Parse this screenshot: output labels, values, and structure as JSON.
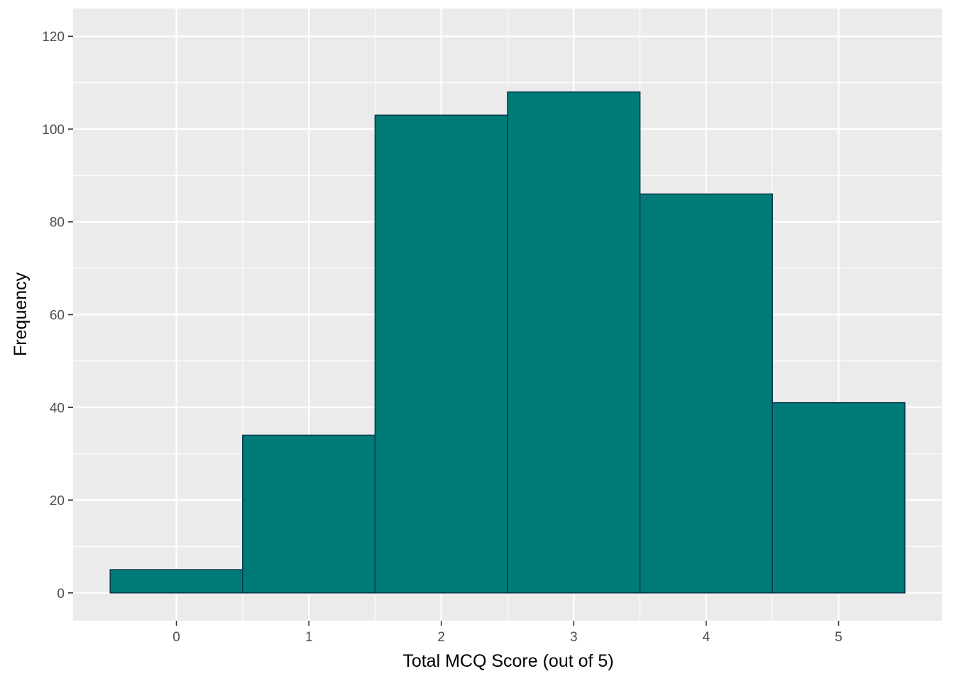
{
  "chart_data": {
    "type": "bar",
    "subtype": "histogram",
    "title": "",
    "xlabel": "Total MCQ Score (out of 5)",
    "ylabel": "Frequency",
    "categories": [
      0,
      1,
      2,
      3,
      4,
      5
    ],
    "values": [
      5,
      34,
      103,
      108,
      86,
      41
    ],
    "bin_width": 1,
    "xlim": [
      -0.78,
      5.78
    ],
    "ylim": [
      -6,
      126
    ],
    "x_ticks": [
      0,
      1,
      2,
      3,
      4,
      5
    ],
    "y_ticks": [
      0,
      20,
      40,
      60,
      80,
      100,
      120
    ],
    "grid": true,
    "legend": "none",
    "colors": {
      "bar_fill": "#007b78",
      "bar_outline": "#0b3a4e",
      "panel_background": "#ebebeb",
      "grid_major": "#ffffff",
      "tick_text": "#4d4d4d",
      "title_text": "#000000"
    }
  }
}
